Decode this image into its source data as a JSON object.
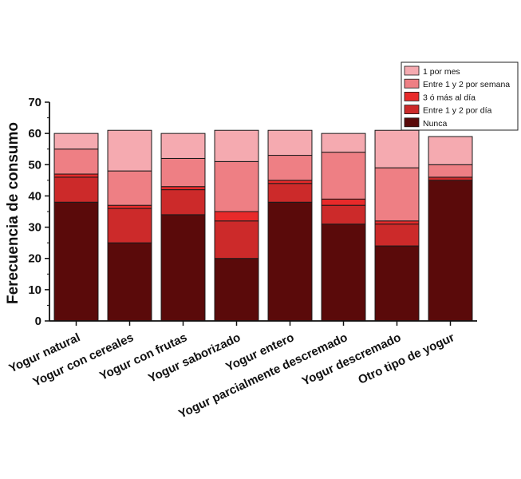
{
  "chart_data": {
    "type": "bar",
    "stacked": true,
    "title": "",
    "xlabel": "",
    "ylabel": "Ferecuencia de consumo",
    "ylim": [
      0,
      70
    ],
    "yticks": [
      0,
      10,
      20,
      30,
      40,
      50,
      60,
      70
    ],
    "grid": false,
    "legend_position": "top-right",
    "categories": [
      "Yogur natural",
      "Yogur con cereales",
      "Yogur con frutas",
      "Yogur saborizado",
      "Yogur entero",
      "Yogur parcialmente descremado",
      "Yogur descremado",
      "Otro tipo de yogur"
    ],
    "series": [
      {
        "name": "Nunca",
        "color": "#5a0a0a",
        "values": [
          38,
          25,
          34,
          20,
          38,
          31,
          24,
          45
        ]
      },
      {
        "name": "Entre 1 y 2 por día",
        "color": "#cc2a2a",
        "values": [
          8,
          11,
          8,
          12,
          6,
          6,
          7,
          1
        ]
      },
      {
        "name": "3 ó más al día",
        "color": "#e82a2a",
        "values": [
          1,
          1,
          1,
          3,
          1,
          2,
          1,
          0
        ]
      },
      {
        "name": "Entre 1 y 2 por semana",
        "color": "#ee7f84",
        "values": [
          8,
          11,
          9,
          16,
          8,
          15,
          17,
          4
        ]
      },
      {
        "name": "1 por mes",
        "color": "#f5aab0",
        "values": [
          5,
          13,
          8,
          10,
          8,
          6,
          12,
          9
        ]
      }
    ]
  }
}
